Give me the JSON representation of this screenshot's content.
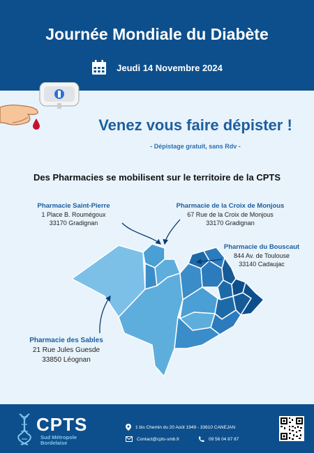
{
  "header": {
    "title": "Journée Mondiale du Diabète",
    "date": "Jeudi 14 Novembre 2024",
    "date_icon": "calendar-icon",
    "color": "#0d4f8c"
  },
  "hero": {
    "slogan": "Venez vous faire dépister !",
    "subtitle": "- Dépistage gratuit, sans Rdv -"
  },
  "section_title": "Des Pharmacies se mobilisent sur le territoire de la CPTS",
  "pharmacies": [
    {
      "name": "Pharmacie Saint-Pierre",
      "address": "1 Place B. Roumégoux",
      "city": "33170 Gradignan"
    },
    {
      "name": "Pharmacie de la Croix de Monjous",
      "address": "67 Rue de la Croix de Monjous",
      "city": "33170 Gradignan"
    },
    {
      "name": "Pharmacie du Bouscaut",
      "address": "844 Av. de Toulouse",
      "city": "33140 Cadaujac"
    },
    {
      "name": "Pharmacie des Sables",
      "address": "21 Rue Jules Guesde",
      "city": "33850 Léognan"
    }
  ],
  "footer": {
    "logo": "CPTS",
    "logo_sub_1": "Sud Métropole",
    "logo_sub_2": "Bordelaise",
    "address": "1 bis Chemin du 20 Août 1949 - 33610 CANEJAN",
    "email": "Contact@cpts-smb.fr",
    "phone": "09 56 04 87 87",
    "icons": [
      "location-pin-icon",
      "mail-icon",
      "phone-icon",
      "qr-code"
    ]
  },
  "colors": {
    "accent": "#1d5fa0",
    "background": "#e8f3fb",
    "map_light": "#5eaedd",
    "map_dark": "#0d4f8c"
  }
}
